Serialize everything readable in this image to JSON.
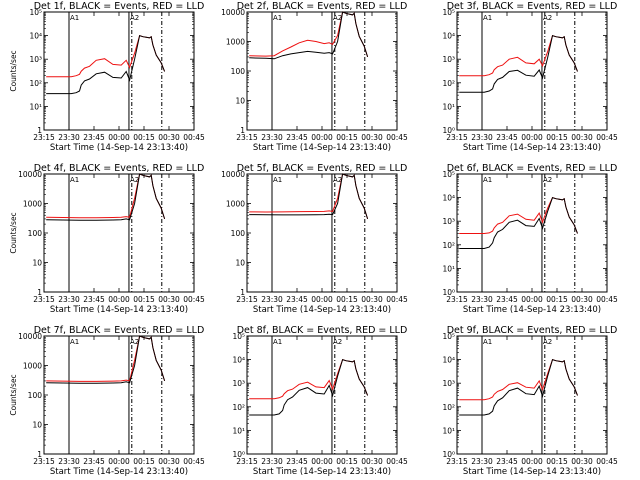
{
  "colors": {
    "events": "#000000",
    "lld": "#ee1111",
    "axis": "#000000",
    "background": "#ffffff"
  },
  "time_ticks": [
    "23:15",
    "23:30",
    "23:45",
    "00:00",
    "00:15",
    "00:30",
    "00:45"
  ],
  "xlabel": "Start Time (14-Sep-14 23:13:40)",
  "ylabel": "Counts/sec",
  "marker_labels": {
    "attenuator_in": "A1",
    "attenuator_out": "A2"
  },
  "chart_data": [
    {
      "type": "line",
      "title": "Det 1f, BLACK = Events, RED = LLD",
      "ylabel": "Counts/sec",
      "scale": "log",
      "ylim": [
        1,
        100000
      ],
      "ytick_labels": [
        "1",
        "10¹",
        "10²",
        "10³",
        "10⁴",
        "10⁵"
      ],
      "ytick_values": [
        1,
        10,
        100,
        1000,
        10000,
        100000
      ],
      "series": [
        {
          "name": "Events",
          "x_minutes": [
            0,
            15,
            18,
            20,
            21,
            23,
            26,
            30,
            35,
            40,
            45,
            48,
            50,
            53,
            56,
            58,
            60,
            62,
            63,
            64,
            66,
            69,
            71
          ],
          "values": [
            35,
            35,
            38,
            45,
            80,
            120,
            145,
            240,
            280,
            170,
            160,
            300,
            130,
            1000,
            10000,
            9000,
            8500,
            8000,
            9000,
            4000,
            1500,
            700,
            300
          ]
        },
        {
          "name": "LLD",
          "x_minutes": [
            0,
            15,
            18,
            20,
            21,
            23,
            26,
            30,
            35,
            40,
            45,
            48,
            50,
            53,
            56,
            58,
            60,
            62,
            63,
            64,
            66,
            69,
            71
          ],
          "values": [
            180,
            180,
            200,
            230,
            310,
            420,
            500,
            900,
            1050,
            600,
            560,
            900,
            450,
            1800,
            10000,
            9000,
            8500,
            8000,
            9000,
            4000,
            1500,
            700,
            300
          ]
        }
      ]
    },
    {
      "type": "line",
      "title": "Det 2f, BLACK = Events, RED = LLD",
      "ylabel": "",
      "scale": "log",
      "ylim": [
        1,
        10000
      ],
      "ytick_labels": [
        "1",
        "10",
        "100",
        "1000",
        "10000"
      ],
      "ytick_values": [
        1,
        10,
        100,
        1000,
        10000
      ],
      "series": [
        {
          "name": "Events",
          "x_minutes": [
            0,
            10,
            15,
            20,
            25,
            30,
            35,
            40,
            45,
            48,
            50,
            53,
            56,
            58,
            60,
            62,
            63,
            64,
            66,
            69,
            71
          ],
          "values": [
            280,
            270,
            260,
            330,
            380,
            420,
            460,
            430,
            400,
            420,
            380,
            1000,
            10000,
            9000,
            8500,
            8000,
            9000,
            4000,
            1500,
            700,
            300
          ]
        },
        {
          "name": "LLD",
          "x_minutes": [
            0,
            10,
            15,
            20,
            25,
            30,
            35,
            40,
            45,
            48,
            50,
            53,
            56,
            58,
            60,
            62,
            63,
            64,
            66,
            69,
            71
          ],
          "values": [
            330,
            320,
            330,
            480,
            650,
            900,
            1100,
            1000,
            850,
            900,
            800,
            1600,
            10000,
            9000,
            8500,
            8000,
            9000,
            4000,
            1500,
            700,
            300
          ]
        }
      ]
    },
    {
      "type": "line",
      "title": "Det 3f, BLACK = Events, RED = LLD",
      "ylabel": "",
      "scale": "log",
      "ylim": [
        1,
        100000
      ],
      "ytick_labels": [
        "10⁰",
        "10¹",
        "10²",
        "10³",
        "10⁴",
        "10⁵"
      ],
      "ytick_values": [
        1,
        10,
        100,
        1000,
        10000,
        100000
      ],
      "series": [
        {
          "name": "Events",
          "x_minutes": [
            0,
            15,
            18,
            20,
            21,
            23,
            26,
            30,
            35,
            40,
            45,
            48,
            50,
            53,
            56,
            58,
            60,
            62,
            63,
            64,
            66,
            69,
            71
          ],
          "values": [
            40,
            40,
            45,
            55,
            90,
            140,
            170,
            300,
            340,
            210,
            190,
            350,
            160,
            1100,
            10000,
            9000,
            8500,
            8000,
            9000,
            4000,
            1500,
            700,
            300
          ]
        },
        {
          "name": "LLD",
          "x_minutes": [
            0,
            15,
            18,
            20,
            21,
            23,
            26,
            30,
            35,
            40,
            45,
            48,
            50,
            53,
            56,
            58,
            60,
            62,
            63,
            64,
            66,
            69,
            71
          ],
          "values": [
            200,
            200,
            220,
            260,
            360,
            480,
            560,
            1000,
            1200,
            700,
            640,
            1000,
            520,
            2000,
            10000,
            9000,
            8500,
            8000,
            9000,
            4000,
            1500,
            700,
            300
          ]
        }
      ]
    },
    {
      "type": "line",
      "title": "Det 4f, BLACK = Events, RED = LLD",
      "ylabel": "Counts/sec",
      "scale": "log",
      "ylim": [
        1,
        10000
      ],
      "ytick_labels": [
        "1",
        "10",
        "100",
        "1000",
        "10000"
      ],
      "ytick_values": [
        1,
        10,
        100,
        1000,
        10000
      ],
      "series": [
        {
          "name": "Events",
          "x_minutes": [
            0,
            10,
            20,
            30,
            40,
            45,
            48,
            50,
            53,
            56,
            58,
            60,
            62,
            63,
            64,
            66,
            69,
            71
          ],
          "values": [
            280,
            275,
            270,
            270,
            275,
            280,
            300,
            280,
            1000,
            10000,
            9000,
            8500,
            8000,
            9000,
            4000,
            1500,
            700,
            300
          ]
        },
        {
          "name": "LLD",
          "x_minutes": [
            0,
            10,
            20,
            30,
            40,
            45,
            48,
            50,
            53,
            56,
            58,
            60,
            62,
            63,
            64,
            66,
            69,
            71
          ],
          "values": [
            340,
            335,
            330,
            330,
            335,
            340,
            360,
            340,
            1500,
            10000,
            9000,
            8500,
            8000,
            9000,
            4000,
            1500,
            700,
            300
          ]
        }
      ]
    },
    {
      "type": "line",
      "title": "Det 5f, BLACK = Events, RED = LLD",
      "ylabel": "",
      "scale": "log",
      "ylim": [
        1,
        10000
      ],
      "ytick_labels": [
        "1",
        "10",
        "100",
        "1000",
        "10000"
      ],
      "ytick_values": [
        1,
        10,
        100,
        1000,
        10000
      ],
      "series": [
        {
          "name": "Events",
          "x_minutes": [
            0,
            10,
            20,
            30,
            40,
            45,
            48,
            50,
            53,
            56,
            58,
            60,
            62,
            63,
            64,
            66,
            69,
            71
          ],
          "values": [
            420,
            415,
            410,
            410,
            415,
            420,
            430,
            420,
            1000,
            10000,
            9000,
            8500,
            8000,
            9000,
            4000,
            1500,
            700,
            300
          ]
        },
        {
          "name": "LLD",
          "x_minutes": [
            0,
            10,
            20,
            30,
            40,
            45,
            48,
            50,
            53,
            56,
            58,
            60,
            62,
            63,
            64,
            66,
            69,
            71
          ],
          "values": [
            520,
            515,
            520,
            530,
            535,
            540,
            560,
            540,
            1500,
            10000,
            9000,
            8500,
            8000,
            9000,
            4000,
            1500,
            700,
            300
          ]
        }
      ]
    },
    {
      "type": "line",
      "title": "Det 6f, BLACK = Events, RED = LLD",
      "ylabel": "",
      "scale": "log",
      "ylim": [
        1,
        100000
      ],
      "ytick_labels": [
        "10⁰",
        "10¹",
        "10²",
        "10³",
        "10⁴",
        "10⁵"
      ],
      "ytick_values": [
        1,
        10,
        100,
        1000,
        10000,
        100000
      ],
      "series": [
        {
          "name": "Events",
          "x_minutes": [
            0,
            15,
            18,
            20,
            21,
            23,
            26,
            30,
            35,
            40,
            45,
            48,
            50,
            53,
            56,
            58,
            60,
            62,
            63,
            64,
            66,
            69,
            71
          ],
          "values": [
            70,
            70,
            80,
            120,
            200,
            350,
            450,
            900,
            1100,
            650,
            600,
            1300,
            500,
            2500,
            10000,
            9000,
            8500,
            8000,
            9000,
            4000,
            1500,
            700,
            300
          ]
        },
        {
          "name": "LLD",
          "x_minutes": [
            0,
            15,
            18,
            20,
            21,
            23,
            26,
            30,
            35,
            40,
            45,
            48,
            50,
            53,
            56,
            58,
            60,
            62,
            63,
            64,
            66,
            69,
            71
          ],
          "values": [
            300,
            300,
            320,
            380,
            520,
            750,
            900,
            1700,
            2000,
            1200,
            1100,
            2200,
            900,
            3500,
            10000,
            9000,
            8500,
            8000,
            9000,
            4000,
            1500,
            700,
            300
          ]
        }
      ]
    },
    {
      "type": "line",
      "title": "Det 7f, BLACK = Events, RED = LLD",
      "ylabel": "Counts/sec",
      "scale": "log",
      "ylim": [
        1,
        10000
      ],
      "ytick_labels": [
        "1",
        "10",
        "100",
        "1000",
        "10000"
      ],
      "ytick_values": [
        1,
        10,
        100,
        1000,
        10000
      ],
      "series": [
        {
          "name": "Events",
          "x_minutes": [
            0,
            10,
            20,
            30,
            40,
            45,
            48,
            50,
            53,
            56,
            58,
            60,
            62,
            63,
            64,
            66,
            69,
            71
          ],
          "values": [
            260,
            255,
            250,
            250,
            255,
            260,
            280,
            260,
            1000,
            10000,
            9000,
            8500,
            8000,
            9000,
            4000,
            1500,
            700,
            300
          ]
        },
        {
          "name": "LLD",
          "x_minutes": [
            0,
            10,
            20,
            30,
            40,
            45,
            48,
            50,
            53,
            56,
            58,
            60,
            62,
            63,
            64,
            66,
            69,
            71
          ],
          "values": [
            300,
            295,
            290,
            290,
            295,
            300,
            320,
            300,
            1500,
            10000,
            9000,
            8500,
            8000,
            9000,
            4000,
            1500,
            700,
            300
          ]
        }
      ]
    },
    {
      "type": "line",
      "title": "Det 8f, BLACK = Events, RED = LLD",
      "ylabel": "",
      "scale": "log",
      "ylim": [
        1,
        100000
      ],
      "ytick_labels": [
        "10⁰",
        "10¹",
        "10²",
        "10³",
        "10⁴",
        "10⁵"
      ],
      "ytick_values": [
        1,
        10,
        100,
        1000,
        10000,
        100000
      ],
      "series": [
        {
          "name": "Events",
          "x_minutes": [
            0,
            15,
            18,
            20,
            21,
            23,
            26,
            30,
            35,
            40,
            45,
            48,
            50,
            53,
            56,
            58,
            60,
            62,
            63,
            64,
            66,
            69,
            71
          ],
          "values": [
            45,
            45,
            50,
            70,
            120,
            200,
            260,
            500,
            650,
            380,
            350,
            800,
            300,
            2000,
            10000,
            9000,
            8500,
            8000,
            9000,
            4000,
            1500,
            700,
            300
          ]
        },
        {
          "name": "LLD",
          "x_minutes": [
            0,
            15,
            18,
            20,
            21,
            23,
            26,
            30,
            35,
            40,
            45,
            48,
            50,
            53,
            56,
            58,
            60,
            62,
            63,
            64,
            66,
            69,
            71
          ],
          "values": [
            220,
            220,
            240,
            280,
            360,
            480,
            560,
            900,
            1100,
            700,
            650,
            1300,
            560,
            2500,
            10000,
            9000,
            8500,
            8000,
            9000,
            4000,
            1500,
            700,
            300
          ]
        }
      ]
    },
    {
      "type": "line",
      "title": "Det 9f, BLACK = Events, RED = LLD",
      "ylabel": "",
      "scale": "log",
      "ylim": [
        1,
        100000
      ],
      "ytick_labels": [
        "10⁰",
        "10¹",
        "10²",
        "10³",
        "10⁴",
        "10⁵"
      ],
      "ytick_values": [
        1,
        10,
        100,
        1000,
        10000,
        100000
      ],
      "series": [
        {
          "name": "Events",
          "x_minutes": [
            0,
            15,
            18,
            20,
            21,
            23,
            26,
            30,
            35,
            40,
            45,
            48,
            50,
            53,
            56,
            58,
            60,
            62,
            63,
            64,
            66,
            69,
            71
          ],
          "values": [
            45,
            45,
            50,
            65,
            110,
            180,
            240,
            480,
            620,
            360,
            330,
            750,
            280,
            1900,
            10000,
            9000,
            8500,
            8000,
            9000,
            4000,
            1500,
            700,
            300
          ]
        },
        {
          "name": "LLD",
          "x_minutes": [
            0,
            15,
            18,
            20,
            21,
            23,
            26,
            30,
            35,
            40,
            45,
            48,
            50,
            53,
            56,
            58,
            60,
            62,
            63,
            64,
            66,
            69,
            71
          ],
          "values": [
            200,
            200,
            220,
            260,
            340,
            450,
            540,
            900,
            1050,
            680,
            620,
            1250,
            540,
            2400,
            10000,
            9000,
            8500,
            8000,
            9000,
            4000,
            1500,
            700,
            300
          ]
        }
      ]
    }
  ]
}
